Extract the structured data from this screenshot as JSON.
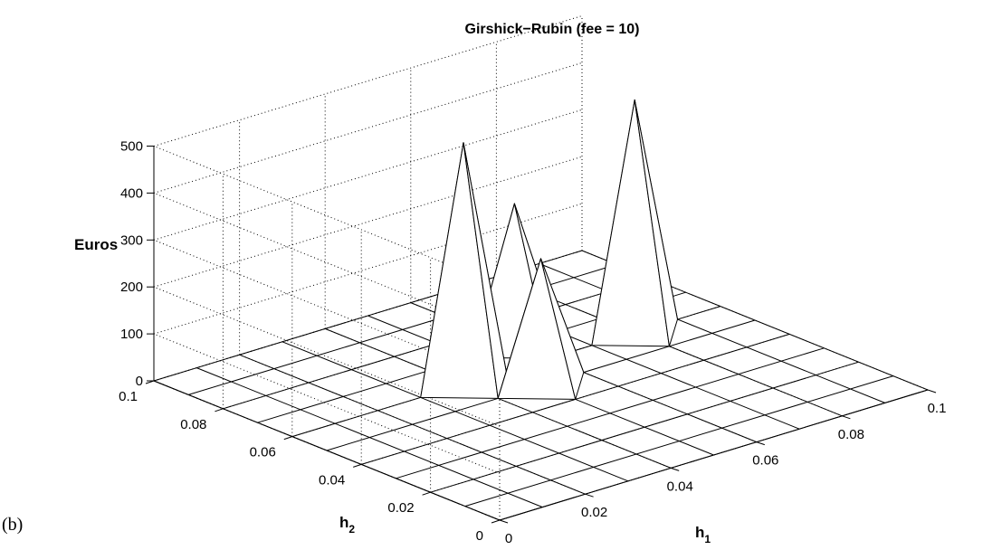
{
  "panel_label": "(b)",
  "chart_data": {
    "type": "surface",
    "title": "Girshick−Rubin (fee = 10)",
    "zlabel": "Euros",
    "xlabel": {
      "base": "h",
      "sub": "1"
    },
    "ylabel": {
      "base": "h",
      "sub": "2"
    },
    "x_ticks": [
      "0",
      "0.02",
      "0.04",
      "0.06",
      "0.08",
      "0.1"
    ],
    "y_ticks": [
      "0",
      "0.02",
      "0.04",
      "0.06",
      "0.08",
      "0.1"
    ],
    "z_ticks": [
      "0",
      "100",
      "200",
      "300",
      "400",
      "500"
    ],
    "xlim": [
      0,
      0.1
    ],
    "ylim": [
      0,
      0.1
    ],
    "zlim": [
      0,
      500
    ],
    "grid": true,
    "mesh_x": [
      0,
      0.01,
      0.02,
      0.03,
      0.04,
      0.05,
      0.06,
      0.07,
      0.08,
      0.09,
      0.1
    ],
    "mesh_y": [
      0,
      0.01,
      0.02,
      0.03,
      0.04,
      0.05,
      0.06,
      0.07,
      0.08,
      0.09,
      0.1
    ],
    "z_values": [
      [
        0,
        0,
        0,
        0,
        0,
        0,
        0,
        0,
        0,
        0,
        0
      ],
      [
        0,
        0,
        0,
        0,
        0,
        0,
        0,
        0,
        0,
        0,
        0
      ],
      [
        0,
        0,
        0,
        0,
        0,
        0,
        0,
        0,
        0,
        0,
        0
      ],
      [
        0,
        0,
        0,
        0,
        0,
        0,
        0,
        0,
        0,
        0,
        0
      ],
      [
        0,
        0,
        0,
        0,
        0,
        0,
        0,
        0,
        0,
        0,
        0
      ],
      [
        0,
        0,
        0,
        0,
        0,
        0,
        0,
        0,
        0,
        0,
        0
      ],
      [
        0,
        0,
        0,
        0,
        0,
        0,
        0,
        0,
        0,
        0,
        0
      ],
      [
        0,
        0,
        0,
        0,
        0,
        0,
        0,
        0,
        0,
        0,
        0
      ],
      [
        0,
        0,
        0,
        0,
        0,
        0,
        0,
        0,
        0,
        0,
        0
      ],
      [
        0,
        0,
        0,
        0,
        0,
        0,
        0,
        0,
        0,
        0,
        0
      ],
      [
        0,
        0,
        0,
        0,
        0,
        0,
        0,
        0,
        0,
        0,
        0
      ]
    ],
    "peaks": [
      {
        "x": 0.04,
        "y": 0.06,
        "z": 515
      },
      {
        "x": 0.05,
        "y": 0.05,
        "z": 270
      },
      {
        "x": 0.08,
        "y": 0.06,
        "z": 495
      },
      {
        "x": 0.06,
        "y": 0.07,
        "z": 300
      }
    ]
  }
}
